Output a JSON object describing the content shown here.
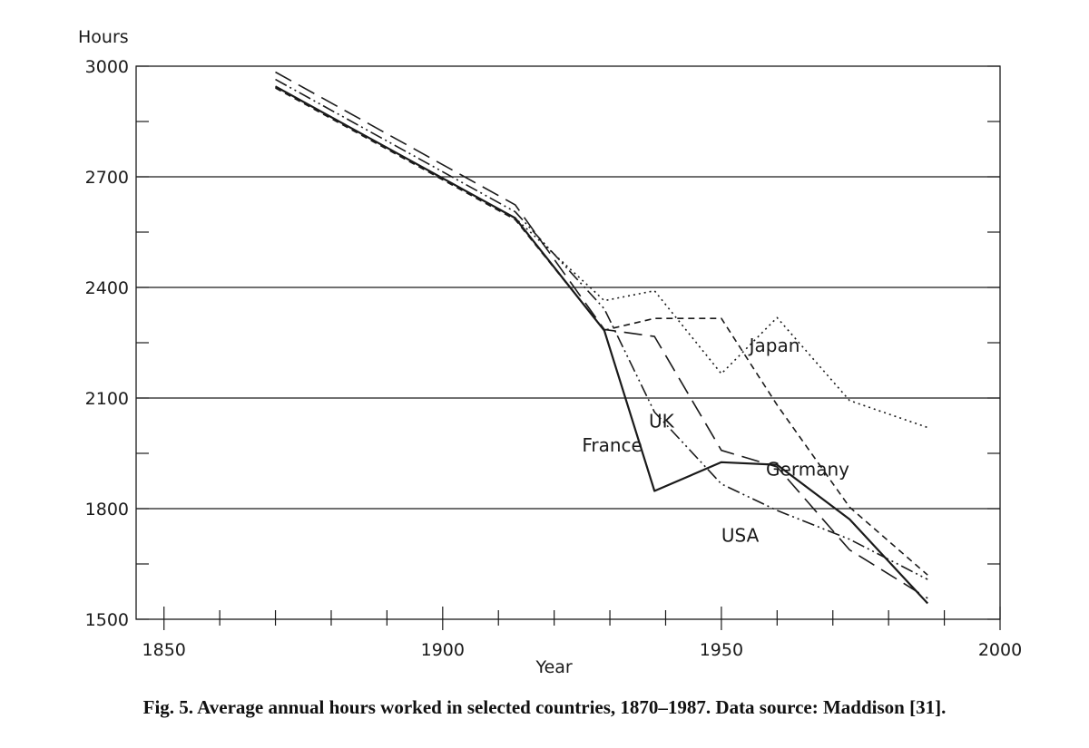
{
  "caption": "Fig. 5.  Average annual hours worked in selected countries, 1870–1987. Data source: Maddison [31].",
  "chart_data": {
    "type": "line",
    "title": "",
    "ylabel": "Hours",
    "xlabel": "Year",
    "xlim": [
      1845,
      2000
    ],
    "ylim": [
      1500,
      3000
    ],
    "x_ticks": [
      1850,
      1900,
      1950,
      2000
    ],
    "y_ticks": [
      1500,
      1800,
      2100,
      2400,
      2700,
      3000
    ],
    "grid": "horizontal",
    "legend": "labels placed next to lines",
    "series": [
      {
        "name": "France",
        "dash": "solid",
        "points": [
          [
            1870,
            2945
          ],
          [
            1913,
            2588
          ],
          [
            1929,
            2283
          ],
          [
            1938,
            1848
          ],
          [
            1950,
            1926
          ],
          [
            1960,
            1919
          ],
          [
            1973,
            1771
          ],
          [
            1987,
            1543
          ]
        ]
      },
      {
        "name": "UK",
        "dash": "longdash",
        "points": [
          [
            1870,
            2984
          ],
          [
            1913,
            2624
          ],
          [
            1929,
            2286
          ],
          [
            1938,
            2267
          ],
          [
            1950,
            1958
          ],
          [
            1960,
            1913
          ],
          [
            1973,
            1688
          ],
          [
            1987,
            1557
          ]
        ]
      },
      {
        "name": "Germany",
        "dash": "shortdash",
        "points": [
          [
            1870,
            2941
          ],
          [
            1913,
            2584
          ],
          [
            1929,
            2284
          ],
          [
            1938,
            2316
          ],
          [
            1950,
            2316
          ],
          [
            1960,
            2081
          ],
          [
            1973,
            1804
          ],
          [
            1987,
            1620
          ]
        ]
      },
      {
        "name": "USA",
        "dash": "dashdotdot",
        "points": [
          [
            1870,
            2964
          ],
          [
            1913,
            2605
          ],
          [
            1929,
            2342
          ],
          [
            1938,
            2062
          ],
          [
            1950,
            1867
          ],
          [
            1960,
            1795
          ],
          [
            1973,
            1717
          ],
          [
            1987,
            1608
          ]
        ]
      },
      {
        "name": "Japan",
        "dash": "dotted",
        "points": [
          [
            1870,
            2945
          ],
          [
            1913,
            2588
          ],
          [
            1929,
            2364
          ],
          [
            1938,
            2391
          ],
          [
            1950,
            2166
          ],
          [
            1960,
            2318
          ],
          [
            1973,
            2093
          ],
          [
            1987,
            2020
          ]
        ]
      }
    ],
    "labels": [
      {
        "text": "Japan",
        "x": 1955,
        "y": 2225
      },
      {
        "text": "UK",
        "x": 1937,
        "y": 2020
      },
      {
        "text": "France",
        "x": 1925,
        "y": 1955
      },
      {
        "text": "Germany",
        "x": 1958,
        "y": 1890
      },
      {
        "text": "USA",
        "x": 1950,
        "y": 1710
      }
    ]
  }
}
